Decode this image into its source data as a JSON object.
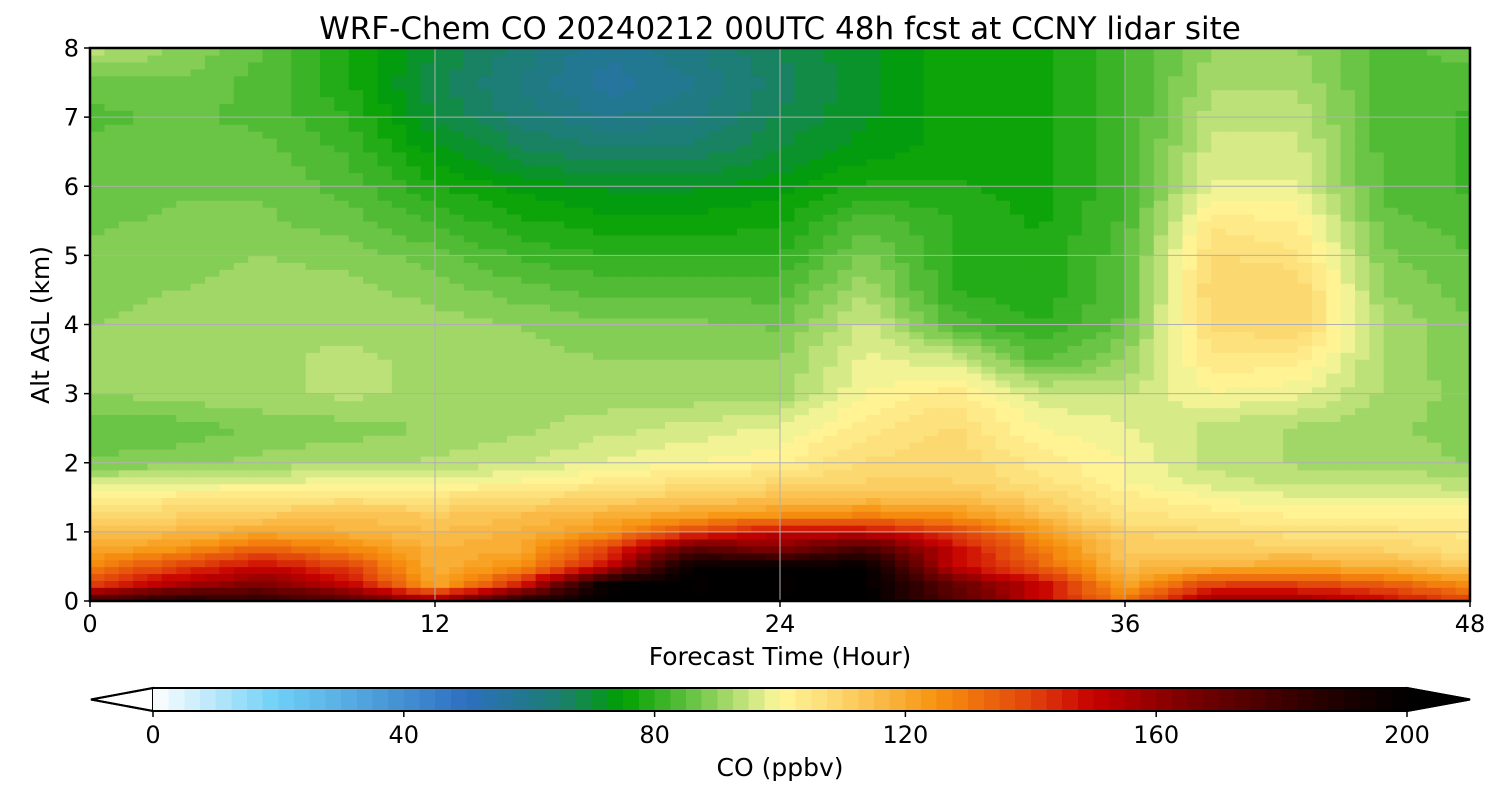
{
  "chart_data": {
    "type": "heatmap",
    "title": "WRF-Chem CO  20240212 00UTC 48h fcst at CCNY lidar site",
    "xlabel": "Forecast Time (Hour)",
    "ylabel": "Alt AGL (km)",
    "xlim": [
      0,
      48
    ],
    "ylim": [
      0,
      8
    ],
    "xticks": [
      0,
      12,
      24,
      36,
      48
    ],
    "yticks": [
      0,
      1,
      2,
      3,
      4,
      5,
      6,
      7,
      8
    ],
    "grid": true,
    "x": [
      0,
      3,
      6,
      9,
      12,
      15,
      18,
      21,
      24,
      27,
      30,
      33,
      36,
      39,
      42,
      45,
      48
    ],
    "y": [
      0,
      0.25,
      0.5,
      0.75,
      1,
      1.25,
      1.5,
      1.75,
      2,
      2.5,
      3,
      3.5,
      4,
      4.5,
      5,
      5.5,
      6,
      6.5,
      7,
      7.5,
      8
    ],
    "z": [
      [
        180,
        190,
        185,
        175,
        160,
        190,
        200,
        200,
        200,
        200,
        175,
        150,
        130,
        160,
        160,
        150,
        140
      ],
      [
        140,
        155,
        165,
        150,
        120,
        145,
        200,
        200,
        200,
        200,
        170,
        150,
        120,
        140,
        140,
        135,
        125
      ],
      [
        128,
        140,
        150,
        140,
        118,
        125,
        150,
        200,
        200,
        200,
        150,
        135,
        115,
        118,
        120,
        118,
        112
      ],
      [
        120,
        125,
        135,
        128,
        118,
        120,
        140,
        175,
        165,
        180,
        150,
        130,
        112,
        112,
        112,
        110,
        106
      ],
      [
        114,
        116,
        120,
        118,
        115,
        118,
        125,
        140,
        150,
        150,
        140,
        125,
        110,
        108,
        106,
        106,
        104
      ],
      [
        110,
        110,
        112,
        114,
        112,
        115,
        118,
        122,
        125,
        128,
        125,
        115,
        106,
        104,
        102,
        102,
        102
      ],
      [
        102,
        104,
        106,
        106,
        106,
        108,
        110,
        112,
        114,
        115,
        115,
        110,
        104,
        100,
        98,
        98,
        97
      ],
      [
        95,
        96,
        97,
        98,
        99,
        100,
        103,
        106,
        108,
        110,
        110,
        106,
        100,
        96,
        94,
        94,
        93
      ],
      [
        88,
        89,
        91,
        92,
        93,
        95,
        98,
        100,
        102,
        108,
        110,
        104,
        100,
        94,
        92,
        92,
        90
      ],
      [
        85,
        86,
        88,
        89,
        90,
        92,
        94,
        96,
        98,
        104,
        108,
        100,
        98,
        94,
        92,
        91,
        88
      ],
      [
        90,
        91,
        92,
        93,
        92,
        91,
        91,
        91,
        91,
        100,
        104,
        96,
        95,
        100,
        98,
        92,
        89
      ],
      [
        91,
        92,
        92,
        93,
        92,
        91,
        90,
        90,
        90,
        98,
        96,
        84,
        90,
        104,
        104,
        92,
        88
      ],
      [
        90,
        91,
        92,
        92,
        91,
        90,
        88,
        88,
        87,
        96,
        84,
        80,
        86,
        108,
        110,
        92,
        88
      ],
      [
        89,
        90,
        91,
        91,
        89,
        86,
        84,
        84,
        84,
        92,
        80,
        78,
        84,
        110,
        110,
        90,
        86
      ],
      [
        88,
        89,
        90,
        89,
        86,
        82,
        80,
        80,
        80,
        88,
        80,
        78,
        84,
        108,
        106,
        88,
        85
      ],
      [
        87,
        88,
        88,
        86,
        82,
        78,
        76,
        76,
        77,
        84,
        80,
        77,
        83,
        104,
        102,
        86,
        84
      ],
      [
        86,
        87,
        87,
        84,
        78,
        74,
        72,
        72,
        74,
        78,
        78,
        76,
        82,
        98,
        98,
        84,
        82
      ],
      [
        86,
        87,
        86,
        82,
        74,
        68,
        66,
        66,
        70,
        74,
        76,
        76,
        82,
        96,
        96,
        84,
        82
      ],
      [
        84,
        86,
        84,
        80,
        70,
        64,
        60,
        62,
        68,
        72,
        76,
        76,
        82,
        94,
        94,
        84,
        82
      ],
      [
        86,
        87,
        84,
        78,
        68,
        62,
        56,
        60,
        66,
        72,
        76,
        76,
        82,
        92,
        92,
        84,
        84
      ],
      [
        94,
        90,
        85,
        78,
        70,
        64,
        58,
        62,
        68,
        72,
        76,
        76,
        82,
        90,
        90,
        84,
        86
      ]
    ],
    "colorbar": {
      "label": "CO  (ppbv)",
      "range": [
        0,
        200
      ],
      "ticks": [
        0,
        40,
        80,
        120,
        160,
        200
      ],
      "extend": "both",
      "stops": [
        [
          0,
          "#ffffff"
        ],
        [
          20,
          "#6ecff6"
        ],
        [
          50,
          "#2e6fc0"
        ],
        [
          65,
          "#1b7e70"
        ],
        [
          75,
          "#00a000"
        ],
        [
          85,
          "#5cbf3c"
        ],
        [
          95,
          "#c8e680"
        ],
        [
          100,
          "#fff79a"
        ],
        [
          110,
          "#fcd36a"
        ],
        [
          125,
          "#f7930f"
        ],
        [
          140,
          "#e2420c"
        ],
        [
          150,
          "#c70000"
        ],
        [
          165,
          "#7a0000"
        ],
        [
          185,
          "#2b0000"
        ],
        [
          200,
          "#000000"
        ]
      ]
    }
  }
}
